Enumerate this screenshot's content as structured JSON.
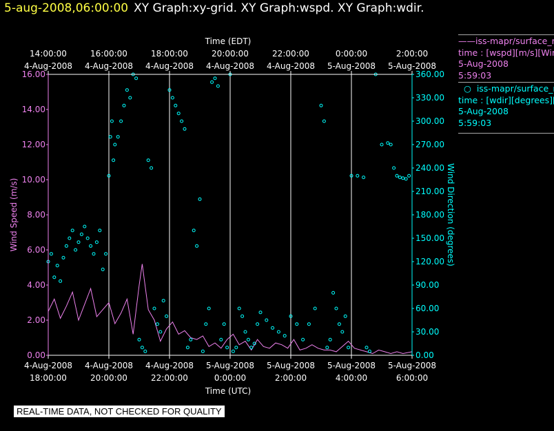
{
  "header": {
    "timestamp": "5-aug-2008,06:00:00",
    "graphs": "XY Graph:xy-grid.  XY Graph:wspd.  XY Graph:wdir."
  },
  "legend": {
    "wspd": {
      "series": "iss-mapr/surface_m",
      "time": "time : [wspd][m/s][Wind",
      "date": "5-Aug-2008",
      "clock": "5:59:03",
      "color": "#ee82ee"
    },
    "wdir": {
      "series": "iss-mapr/surface_m",
      "time": "time : [wdir][degrees][Wi",
      "date": "5-Aug-2008",
      "clock": "5:59:03",
      "color": "#00ffff"
    }
  },
  "footer": {
    "note": "REAL-TIME DATA, NOT CHECKED FOR QUALITY"
  },
  "chart_data": {
    "type": "scatter",
    "top_axis": {
      "label": "Time (EDT)",
      "ticks": [
        [
          "14:00:00",
          "4-Aug-2008"
        ],
        [
          "16:00:00",
          "4-Aug-2008"
        ],
        [
          "18:00:00",
          "4-Aug-2008"
        ],
        [
          "20:00:00",
          "4-Aug-2008"
        ],
        [
          "22:00:00",
          "4-Aug-2008"
        ],
        [
          "0:00:00",
          "5-Aug-2008"
        ],
        [
          "2:00:00",
          "5-Aug-2008"
        ]
      ]
    },
    "bottom_axis": {
      "label": "Time (UTC)",
      "ticks": [
        [
          "4-Aug-2008",
          "18:00:00"
        ],
        [
          "4-Aug-2008",
          "20:00:00"
        ],
        [
          "4-Aug-2008",
          "22:00:00"
        ],
        [
          "5-Aug-2008",
          "0:00:00"
        ],
        [
          "5-Aug-2008",
          "2:00:00"
        ],
        [
          "5-Aug-2008",
          "4:00:00"
        ],
        [
          "5-Aug-2008",
          "6:00:00"
        ]
      ]
    },
    "xlim_hours_utc": [
      18,
      30
    ],
    "left_axis": {
      "label": "Wind Speed (m/s)",
      "ylim": [
        0,
        16
      ],
      "ticks": [
        "0.00",
        "2.00",
        "4.00",
        "6.00",
        "8.00",
        "10.00",
        "12.00",
        "14.00",
        "16.00"
      ]
    },
    "right_axis": {
      "label": "Wind Direction (degrees)",
      "ylim": [
        0,
        360
      ],
      "ticks": [
        "0.00",
        "30.00",
        "60.00",
        "90.00",
        "120.00",
        "150.00",
        "180.00",
        "210.00",
        "240.00",
        "270.00",
        "300.00",
        "330.00",
        "360.00"
      ]
    },
    "grid": "vertical",
    "series": [
      {
        "name": "iss-mapr/surface_m time : [wspd][m/s]",
        "kind": "line",
        "color": "#ee82ee",
        "x": [
          18.0,
          18.2,
          18.4,
          18.6,
          18.8,
          19.0,
          19.2,
          19.4,
          19.6,
          19.8,
          20.0,
          20.2,
          20.4,
          20.6,
          20.8,
          21.0,
          21.1,
          21.3,
          21.5,
          21.7,
          21.9,
          22.1,
          22.3,
          22.5,
          22.7,
          22.9,
          23.1,
          23.3,
          23.5,
          23.7,
          23.9,
          24.1,
          24.3,
          24.5,
          24.7,
          24.9,
          25.1,
          25.3,
          25.5,
          25.7,
          25.9,
          26.1,
          26.3,
          26.5,
          26.7,
          26.9,
          27.1,
          27.3,
          27.5,
          27.7,
          27.9,
          28.1,
          28.3,
          28.5,
          28.7,
          28.9,
          29.1,
          29.3,
          29.5,
          29.7,
          30.0
        ],
        "y": [
          2.5,
          3.2,
          2.1,
          2.8,
          3.6,
          2.0,
          2.9,
          3.8,
          2.2,
          2.6,
          3.0,
          1.8,
          2.4,
          3.2,
          1.2,
          4.0,
          5.2,
          2.6,
          2.0,
          0.8,
          1.5,
          1.9,
          1.2,
          1.4,
          1.0,
          0.9,
          1.1,
          0.5,
          0.7,
          0.4,
          0.9,
          1.2,
          0.6,
          0.8,
          0.3,
          0.9,
          0.5,
          0.4,
          0.7,
          0.6,
          0.4,
          0.9,
          0.3,
          0.4,
          0.6,
          0.4,
          0.3,
          0.3,
          0.2,
          0.5,
          0.8,
          0.4,
          0.3,
          0.2,
          0.1,
          0.3,
          0.2,
          0.1,
          0.2,
          0.1,
          0.2
        ]
      },
      {
        "name": "iss-mapr/surface_m time : [wdir][degrees]",
        "kind": "points",
        "color": "#00ffff",
        "x": [
          18.0,
          18.1,
          18.2,
          18.3,
          18.4,
          18.5,
          18.6,
          18.7,
          18.8,
          18.9,
          19.0,
          19.1,
          19.2,
          19.3,
          19.4,
          19.5,
          19.6,
          19.7,
          19.8,
          19.9,
          20.0,
          20.05,
          20.1,
          20.15,
          20.2,
          20.3,
          20.4,
          20.5,
          20.6,
          20.7,
          20.8,
          20.9,
          21.0,
          21.1,
          21.2,
          21.3,
          21.4,
          21.5,
          21.6,
          21.7,
          21.8,
          21.9,
          22.0,
          22.1,
          22.2,
          22.3,
          22.4,
          22.5,
          22.6,
          22.7,
          22.8,
          22.9,
          23.0,
          23.1,
          23.2,
          23.3,
          23.4,
          23.5,
          23.6,
          23.7,
          23.8,
          23.9,
          24.0,
          24.1,
          24.2,
          24.3,
          24.4,
          24.5,
          24.6,
          24.7,
          24.8,
          24.9,
          25.0,
          25.2,
          25.4,
          25.6,
          25.8,
          26.0,
          26.2,
          26.4,
          26.6,
          26.8,
          27.0,
          27.1,
          27.2,
          27.3,
          27.4,
          27.5,
          27.6,
          27.7,
          27.8,
          27.9,
          28.0,
          28.2,
          28.4,
          28.5,
          28.6,
          28.8,
          29.0,
          29.2,
          29.3,
          29.4,
          29.5,
          29.6,
          29.7,
          29.8,
          29.9
        ],
        "y": [
          120,
          130,
          100,
          115,
          95,
          125,
          140,
          150,
          160,
          135,
          145,
          155,
          165,
          150,
          140,
          130,
          145,
          160,
          110,
          130,
          230,
          280,
          300,
          250,
          270,
          280,
          300,
          320,
          340,
          330,
          360,
          355,
          20,
          10,
          5,
          250,
          240,
          60,
          40,
          30,
          70,
          50,
          340,
          330,
          320,
          310,
          300,
          290,
          10,
          20,
          160,
          140,
          200,
          5,
          40,
          60,
          350,
          355,
          345,
          20,
          40,
          10,
          360,
          5,
          10,
          60,
          50,
          30,
          20,
          10,
          15,
          40,
          55,
          45,
          35,
          30,
          25,
          50,
          40,
          20,
          40,
          60,
          320,
          300,
          10,
          20,
          80,
          60,
          40,
          30,
          50,
          10,
          230,
          230,
          228,
          10,
          5,
          360,
          270,
          272,
          270,
          240,
          230,
          228,
          227,
          226,
          230
        ]
      }
    ]
  }
}
